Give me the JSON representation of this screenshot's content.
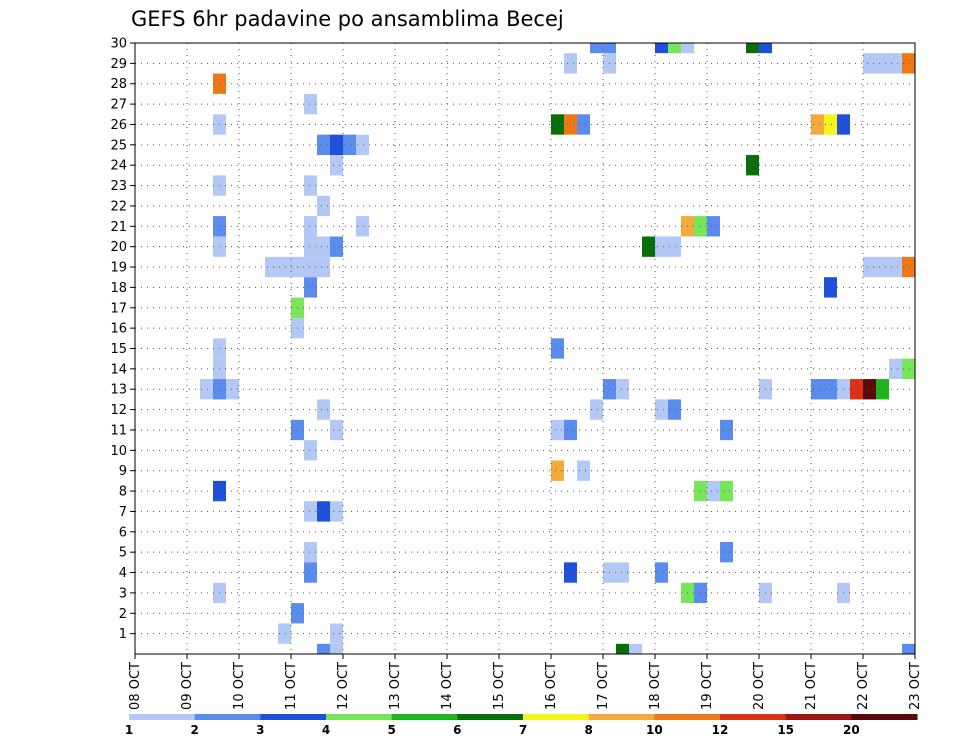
{
  "chart_data": {
    "type": "heatmap",
    "title": "GEFS 6hr padavine po ansamblima Becej",
    "xlabel": "",
    "ylabel": "",
    "x_unit": "6-hour steps",
    "x_range": [
      0,
      60
    ],
    "y_range": [
      0,
      30
    ],
    "x_ticks": [
      {
        "step": 0,
        "label": "08 OCT"
      },
      {
        "step": 4,
        "label": "09 OCT"
      },
      {
        "step": 8,
        "label": "10 OCT"
      },
      {
        "step": 12,
        "label": "11 OCT"
      },
      {
        "step": 16,
        "label": "12 OCT"
      },
      {
        "step": 20,
        "label": "13 OCT"
      },
      {
        "step": 24,
        "label": "14 OCT"
      },
      {
        "step": 28,
        "label": "15 OCT"
      },
      {
        "step": 32,
        "label": "16 OCT"
      },
      {
        "step": 36,
        "label": "17 OCT"
      },
      {
        "step": 40,
        "label": "18 OCT"
      },
      {
        "step": 44,
        "label": "19 OCT"
      },
      {
        "step": 48,
        "label": "20 OCT"
      },
      {
        "step": 52,
        "label": "21 OCT"
      },
      {
        "step": 56,
        "label": "22 OCT"
      },
      {
        "step": 60,
        "label": "23 OCT"
      }
    ],
    "y_ticks": [
      "1",
      "2",
      "3",
      "4",
      "5",
      "6",
      "7",
      "8",
      "9",
      "10",
      "11",
      "12",
      "13",
      "14",
      "15",
      "16",
      "17",
      "18",
      "19",
      "20",
      "21",
      "22",
      "23",
      "24",
      "25",
      "26",
      "27",
      "28",
      "29",
      "30"
    ],
    "grid": true,
    "colorbar": {
      "colors": [
        "#b4c8f5",
        "#5a8cee",
        "#1e50dc",
        "#78e65a",
        "#1eb41e",
        "#0a6e0a",
        "#f5f51e",
        "#f5aa3c",
        "#f07814",
        "#dc3214",
        "#a01414",
        "#5a0a0a"
      ],
      "labels": [
        "1",
        "2",
        "3",
        "4",
        "5",
        "6",
        "7",
        "8",
        "10",
        "12",
        "15",
        "20"
      ]
    },
    "cells": [
      {
        "s": 6,
        "m": 28,
        "c": 8
      },
      {
        "s": 5,
        "m": 13,
        "c": 0
      },
      {
        "s": 6,
        "m": 13,
        "c": 1
      },
      {
        "s": 7,
        "m": 13,
        "c": 0
      },
      {
        "s": 6,
        "m": 14,
        "c": 0
      },
      {
        "s": 6,
        "m": 15,
        "c": 0
      },
      {
        "s": 6,
        "m": 20,
        "c": 0
      },
      {
        "s": 6,
        "m": 21,
        "c": 1
      },
      {
        "s": 6,
        "m": 23,
        "c": 0
      },
      {
        "s": 6,
        "m": 26,
        "c": 0
      },
      {
        "s": 6,
        "m": 8,
        "c": 2
      },
      {
        "s": 6,
        "m": 3,
        "c": 0
      },
      {
        "s": 11,
        "m": 1,
        "c": 0
      },
      {
        "s": 12,
        "m": 2,
        "c": 1
      },
      {
        "s": 10,
        "m": 19,
        "c": 0
      },
      {
        "s": 11,
        "m": 19,
        "c": 0
      },
      {
        "s": 12,
        "m": 19,
        "c": 0
      },
      {
        "s": 13,
        "m": 19,
        "c": 0
      },
      {
        "s": 14,
        "m": 19,
        "c": 0
      },
      {
        "s": 12,
        "m": 17,
        "c": 3
      },
      {
        "s": 12,
        "m": 16,
        "c": 0
      },
      {
        "s": 12,
        "m": 11,
        "c": 1
      },
      {
        "s": 13,
        "m": 18,
        "c": 1
      },
      {
        "s": 13,
        "m": 27,
        "c": 0
      },
      {
        "s": 13,
        "m": 23,
        "c": 0
      },
      {
        "s": 13,
        "m": 21,
        "c": 0
      },
      {
        "s": 13,
        "m": 20,
        "c": 0
      },
      {
        "s": 14,
        "m": 20,
        "c": 0
      },
      {
        "s": 15,
        "m": 20,
        "c": 1
      },
      {
        "s": 13,
        "m": 10,
        "c": 0
      },
      {
        "s": 13,
        "m": 7,
        "c": 0
      },
      {
        "s": 14,
        "m": 7,
        "c": 2
      },
      {
        "s": 15,
        "m": 7,
        "c": 0
      },
      {
        "s": 13,
        "m": 5,
        "c": 0
      },
      {
        "s": 13,
        "m": 4,
        "c": 1
      },
      {
        "s": 14,
        "m": 22,
        "c": 0
      },
      {
        "s": 14,
        "m": 12,
        "c": 0
      },
      {
        "s": 14,
        "m": 25,
        "c": 1
      },
      {
        "s": 15,
        "m": 25,
        "c": 2
      },
      {
        "s": 16,
        "m": 25,
        "c": 1
      },
      {
        "s": 17,
        "m": 25,
        "c": 0
      },
      {
        "s": 15,
        "m": 24,
        "c": 0
      },
      {
        "s": 17,
        "m": 21,
        "c": 0
      },
      {
        "s": 15,
        "m": 11,
        "c": 0
      },
      {
        "s": 15,
        "m": 1,
        "c": 0
      },
      {
        "s": 14,
        "m": 0,
        "c": 1
      },
      {
        "s": 15,
        "m": 0,
        "c": 0
      },
      {
        "s": 32,
        "m": 26,
        "c": 5
      },
      {
        "s": 33,
        "m": 26,
        "c": 8
      },
      {
        "s": 34,
        "m": 26,
        "c": 1
      },
      {
        "s": 32,
        "m": 15,
        "c": 1
      },
      {
        "s": 32,
        "m": 11,
        "c": 0
      },
      {
        "s": 33,
        "m": 11,
        "c": 1
      },
      {
        "s": 32,
        "m": 9,
        "c": 7
      },
      {
        "s": 33,
        "m": 29,
        "c": 0
      },
      {
        "s": 34,
        "m": 9,
        "c": 0
      },
      {
        "s": 33,
        "m": 4,
        "c": 2
      },
      {
        "s": 35,
        "m": 30,
        "c": 1
      },
      {
        "s": 36,
        "m": 30,
        "c": 1
      },
      {
        "s": 36,
        "m": 29,
        "c": 0
      },
      {
        "s": 35,
        "m": 12,
        "c": 0
      },
      {
        "s": 36,
        "m": 13,
        "c": 1
      },
      {
        "s": 37,
        "m": 13,
        "c": 0
      },
      {
        "s": 36,
        "m": 4,
        "c": 0
      },
      {
        "s": 37,
        "m": 4,
        "c": 0
      },
      {
        "s": 37,
        "m": 0,
        "c": 5
      },
      {
        "s": 38,
        "m": 0,
        "c": 0
      },
      {
        "s": 39,
        "m": 20,
        "c": 5
      },
      {
        "s": 40,
        "m": 20,
        "c": 0
      },
      {
        "s": 41,
        "m": 20,
        "c": 0
      },
      {
        "s": 40,
        "m": 12,
        "c": 0
      },
      {
        "s": 41,
        "m": 12,
        "c": 1
      },
      {
        "s": 40,
        "m": 4,
        "c": 1
      },
      {
        "s": 40,
        "m": 30,
        "c": 2
      },
      {
        "s": 41,
        "m": 30,
        "c": 3
      },
      {
        "s": 42,
        "m": 30,
        "c": 0
      },
      {
        "s": 42,
        "m": 21,
        "c": 7
      },
      {
        "s": 43,
        "m": 21,
        "c": 3
      },
      {
        "s": 44,
        "m": 21,
        "c": 1
      },
      {
        "s": 42,
        "m": 3,
        "c": 3
      },
      {
        "s": 43,
        "m": 3,
        "c": 1
      },
      {
        "s": 43,
        "m": 8,
        "c": 3
      },
      {
        "s": 44,
        "m": 8,
        "c": 0
      },
      {
        "s": 45,
        "m": 8,
        "c": 3
      },
      {
        "s": 45,
        "m": 11,
        "c": 1
      },
      {
        "s": 45,
        "m": 5,
        "c": 1
      },
      {
        "s": 47,
        "m": 30,
        "c": 5
      },
      {
        "s": 48,
        "m": 30,
        "c": 2
      },
      {
        "s": 47,
        "m": 24,
        "c": 5
      },
      {
        "s": 48,
        "m": 13,
        "c": 0
      },
      {
        "s": 48,
        "m": 3,
        "c": 0
      },
      {
        "s": 52,
        "m": 26,
        "c": 7
      },
      {
        "s": 53,
        "m": 26,
        "c": 6
      },
      {
        "s": 54,
        "m": 26,
        "c": 2
      },
      {
        "s": 52,
        "m": 13,
        "c": 1
      },
      {
        "s": 53,
        "m": 13,
        "c": 1
      },
      {
        "s": 54,
        "m": 13,
        "c": 0
      },
      {
        "s": 55,
        "m": 13,
        "c": 9
      },
      {
        "s": 56,
        "m": 13,
        "c": 11
      },
      {
        "s": 57,
        "m": 13,
        "c": 4
      },
      {
        "s": 54,
        "m": 3,
        "c": 0
      },
      {
        "s": 53,
        "m": 18,
        "c": 2
      },
      {
        "s": 56,
        "m": 29,
        "c": 0
      },
      {
        "s": 57,
        "m": 29,
        "c": 0
      },
      {
        "s": 58,
        "m": 29,
        "c": 0
      },
      {
        "s": 59,
        "m": 29,
        "c": 8
      },
      {
        "s": 56,
        "m": 19,
        "c": 0
      },
      {
        "s": 57,
        "m": 19,
        "c": 0
      },
      {
        "s": 58,
        "m": 19,
        "c": 0
      },
      {
        "s": 59,
        "m": 19,
        "c": 8
      },
      {
        "s": 58,
        "m": 14,
        "c": 0
      },
      {
        "s": 59,
        "m": 14,
        "c": 3
      },
      {
        "s": 59,
        "m": 0,
        "c": 1
      }
    ]
  }
}
